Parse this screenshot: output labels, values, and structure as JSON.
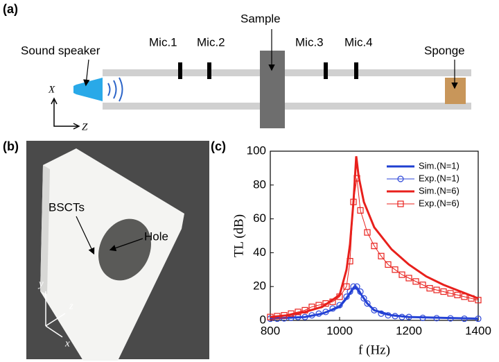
{
  "panel_a": {
    "label": "(a)",
    "speaker": "Sound speaker",
    "mics": [
      "Mic.1",
      "Mic.2",
      "Mic.3",
      "Mic.4"
    ],
    "sample": "Sample",
    "sponge": "Sponge",
    "axis_x": "X",
    "axis_z": "Z"
  },
  "panel_b": {
    "label": "(b)",
    "bscts": "BSCTs",
    "hole": "Hole",
    "axis_y": "y",
    "axis_z": "z",
    "axis_x": "x"
  },
  "chart_data": {
    "type": "line",
    "panel_label": "(c)",
    "x_label": "f (Hz)",
    "y_label": "TL (dB)",
    "xlim": [
      800,
      1400
    ],
    "xticks": [
      800,
      1000,
      1200,
      1400
    ],
    "ylim": [
      0,
      100
    ],
    "yticks": [
      0,
      20,
      40,
      60,
      80,
      100
    ],
    "legend": "upper right",
    "series": [
      {
        "name": "Sim.(N=1)",
        "color": "#1f3fd0",
        "x": [
          800,
          900,
          950,
          1000,
          1020,
          1040,
          1045,
          1060,
          1080,
          1100,
          1150,
          1200,
          1300,
          1400
        ],
        "values": [
          1,
          2,
          4,
          8,
          13,
          19,
          20,
          16,
          10,
          6,
          3,
          2,
          1.5,
          1
        ]
      },
      {
        "name": "Exp.(N=1)",
        "color": "#2b45d8",
        "marker": "circle",
        "x": [
          800,
          820,
          840,
          860,
          880,
          900,
          920,
          940,
          960,
          980,
          1000,
          1020,
          1030,
          1040,
          1050,
          1060,
          1070,
          1080,
          1100,
          1120,
          1140,
          1160,
          1180,
          1200,
          1240,
          1280,
          1320,
          1360,
          1400
        ],
        "values": [
          1,
          1,
          1.2,
          1.5,
          2,
          2,
          3,
          4,
          5,
          7,
          9,
          14,
          17,
          20,
          20,
          17,
          13,
          10,
          6,
          4,
          3,
          2.5,
          2,
          2,
          1.5,
          1.3,
          1.2,
          1,
          1
        ]
      },
      {
        "name": "Sim.(N=6)",
        "color": "#e8201c",
        "x": [
          800,
          850,
          900,
          950,
          1000,
          1020,
          1030,
          1040,
          1048,
          1055,
          1070,
          1100,
          1150,
          1200,
          1250,
          1300,
          1350,
          1400
        ],
        "values": [
          2,
          3,
          5,
          8,
          15,
          30,
          45,
          70,
          97,
          85,
          70,
          55,
          42,
          33,
          26,
          21,
          17,
          13
        ]
      },
      {
        "name": "Exp.(N=6)",
        "color": "#e8201c",
        "marker": "square",
        "x": [
          800,
          820,
          840,
          860,
          880,
          900,
          920,
          940,
          960,
          980,
          1000,
          1020,
          1030,
          1040,
          1050,
          1060,
          1080,
          1100,
          1120,
          1140,
          1160,
          1180,
          1200,
          1220,
          1240,
          1260,
          1280,
          1300,
          1320,
          1340,
          1360,
          1380,
          1400
        ],
        "values": [
          2,
          2.5,
          3,
          4,
          5,
          6,
          8,
          9,
          10,
          11,
          14,
          20,
          35,
          70,
          84,
          65,
          52,
          44,
          38,
          33,
          30,
          27,
          25,
          23,
          21,
          19,
          18,
          17,
          16,
          15,
          14,
          13,
          12
        ]
      }
    ]
  }
}
